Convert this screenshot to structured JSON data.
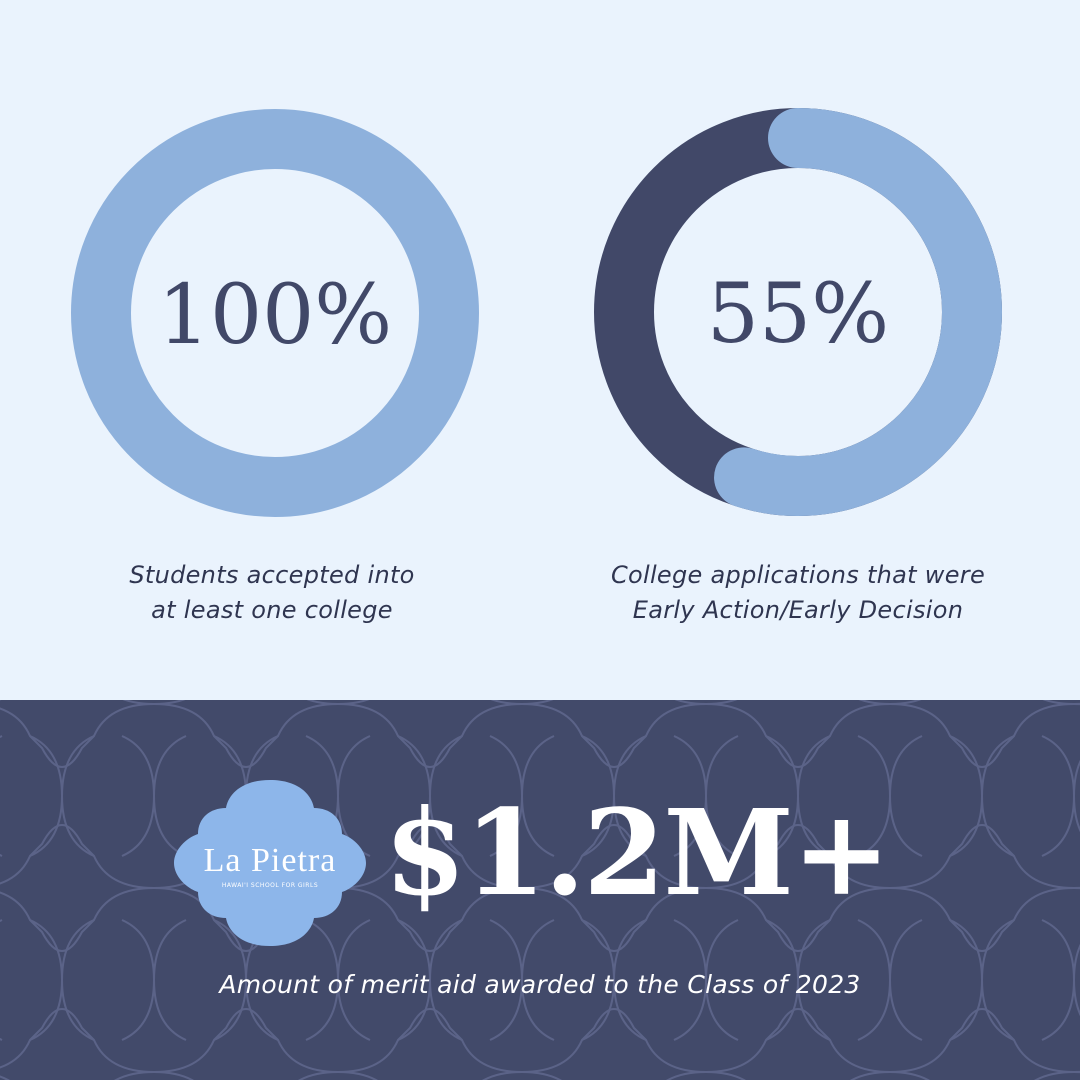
{
  "colors": {
    "background": "#eaf3fd",
    "light": "#8eb1dc",
    "dark": "#414868",
    "panel": "#424a6a",
    "logo": "#8db6ea"
  },
  "chart_data": [
    {
      "type": "pie",
      "style": "donut",
      "value_label": "100%",
      "values": [
        100,
        0
      ],
      "caption": [
        "Students accepted into",
        "at least one college"
      ]
    },
    {
      "type": "pie",
      "style": "donut",
      "value_label": "55%",
      "values": [
        55,
        45
      ],
      "caption": [
        "College applications that were",
        "Early Action/Early Decision"
      ]
    }
  ],
  "logo": {
    "name": "La Pietra",
    "subtitle": "HAWAI'I SCHOOL FOR GIRLS"
  },
  "highlight": {
    "value": "$1.2M+",
    "caption": "Amount of merit aid awarded to the Class of 2023"
  }
}
